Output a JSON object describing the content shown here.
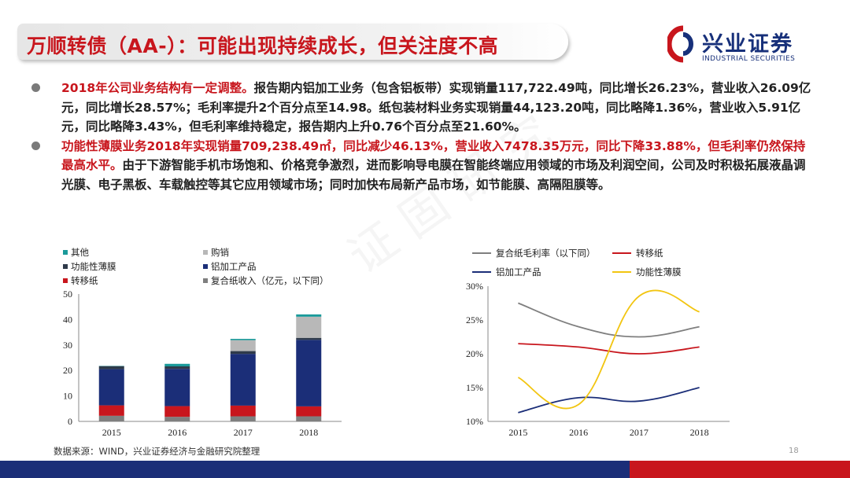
{
  "slide": {
    "title": "万顺转债（AA-）：可能出现持续成长，但关注度不高",
    "logo_cn": "兴业证券",
    "logo_en": "INDUSTRIAL SECURITIES",
    "page_number": "18",
    "source": "数据来源：WIND，兴业证券经济与金融研究院整理",
    "colors": {
      "accent_red": "#c8161d",
      "brand_navy": "#1b2e78"
    }
  },
  "bullets": [
    {
      "highlight": "2018年公司业务结构有一定调整。",
      "text": "报告期内铝加工业务（包含铝板带）实现销量117,722.49吨，同比增长26.23%，营业收入26.09亿元，同比增长28.57%；毛利率提升2个百分点至14.98。纸包装材料业务实现销量44,123.20吨，同比略降1.36%，营业收入5.91亿元，同比略降3.43%，但毛利率维持稳定，报告期内上升0.76个百分点至21.60%。"
    },
    {
      "highlight": "功能性薄膜业务2018年实现销量709,238.49㎡，同比减少46.13%，营业收入7478.35万元，同比下降33.88%，但毛利率仍然保持最高水平。",
      "text": "由于下游智能手机市场饱和、价格竞争激烈，进而影响导电膜在智能终端应用领域的市场及利润空间，公司及时积极拓展液晶调光膜、电子黑板、车载触控等其它应用领域市场；同时加快布局新产品市场，如节能膜、高隔阻膜等。"
    }
  ],
  "chart_data": [
    {
      "type": "bar",
      "stacked": true,
      "categories": [
        "2015",
        "2016",
        "2017",
        "2018"
      ],
      "ylim": [
        0,
        50
      ],
      "yticks": [
        0,
        10,
        20,
        30,
        40,
        50
      ],
      "legend_position": "top",
      "series": [
        {
          "name": "复合纸收入（亿元，以下同）",
          "color": "#7f7f7f",
          "values": [
            2.2,
            1.8,
            2.0,
            2.0
          ]
        },
        {
          "name": "转移纸",
          "color": "#c8161d",
          "values": [
            4.1,
            4.2,
            4.2,
            3.9
          ]
        },
        {
          "name": "铝加工产品",
          "color": "#1b2e78",
          "values": [
            14.2,
            14.6,
            20.3,
            26.1
          ]
        },
        {
          "name": "功能性薄膜",
          "color": "#2e3a4a",
          "values": [
            1.2,
            1.0,
            1.1,
            0.8
          ]
        },
        {
          "name": "购销",
          "color": "#b8b8b8",
          "values": [
            0.0,
            0.0,
            4.3,
            8.3
          ]
        },
        {
          "name": "其他",
          "color": "#1a9a9a",
          "values": [
            0.1,
            1.0,
            0.5,
            0.9
          ]
        }
      ]
    },
    {
      "type": "line",
      "categories": [
        "2015",
        "2016",
        "2017",
        "2018"
      ],
      "ylim": [
        0.1,
        0.3
      ],
      "yticks": [
        "10%",
        "15%",
        "20%",
        "25%",
        "30%"
      ],
      "legend_position": "top",
      "series": [
        {
          "name": "复合纸毛利率（以下同）",
          "color": "#7f7f7f",
          "values": [
            0.275,
            0.24,
            0.225,
            0.24
          ]
        },
        {
          "name": "转移纸",
          "color": "#c8161d",
          "values": [
            0.215,
            0.21,
            0.2,
            0.21
          ]
        },
        {
          "name": "铝加工产品",
          "color": "#1b2e78",
          "values": [
            0.113,
            0.135,
            0.13,
            0.15
          ]
        },
        {
          "name": "功能性薄膜",
          "color": "#f2c511",
          "values": [
            0.165,
            0.125,
            0.285,
            0.262
          ]
        }
      ]
    }
  ]
}
